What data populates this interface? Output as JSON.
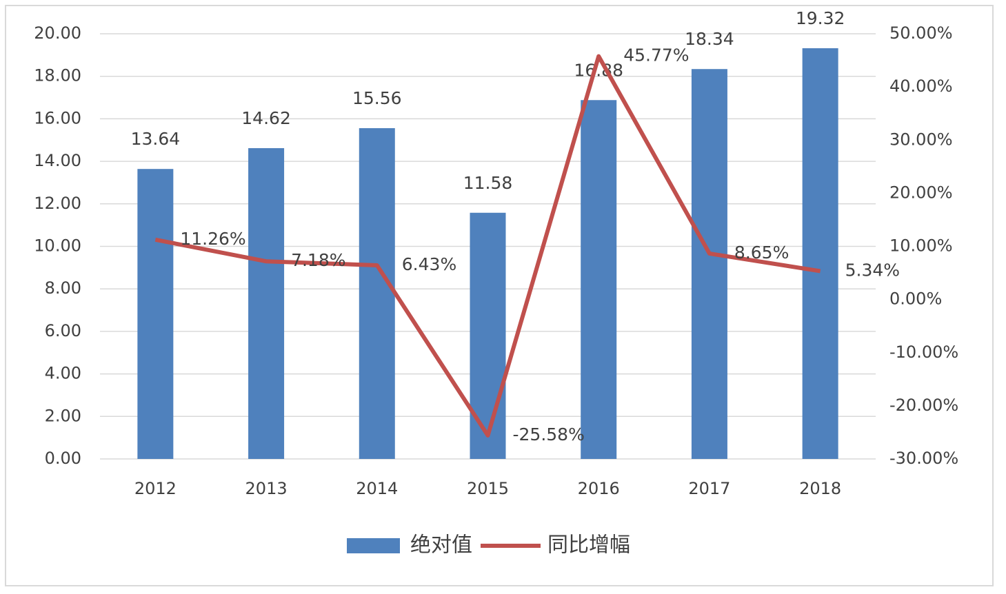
{
  "chart_data": {
    "type": "bar",
    "categories": [
      "2012",
      "2013",
      "2014",
      "2015",
      "2016",
      "2017",
      "2018"
    ],
    "series": [
      {
        "name": "绝对值",
        "type": "bar",
        "color": "#4f81bd",
        "values": [
          13.64,
          14.62,
          15.56,
          11.58,
          16.88,
          18.34,
          19.32
        ]
      },
      {
        "name": "同比增幅",
        "type": "line",
        "axis": "y2",
        "color": "#c0504d",
        "values": [
          11.26,
          7.18,
          6.43,
          -25.58,
          45.77,
          8.65,
          5.34
        ],
        "value_labels": [
          "11.26%",
          "7.18%",
          "6.43%",
          "-25.58%",
          "45.77%",
          "8.65%",
          "5.34%"
        ]
      }
    ],
    "ylim": [
      0,
      20
    ],
    "yticks": [
      {
        "value": 0,
        "label": "0.00"
      },
      {
        "value": 2,
        "label": "2.00"
      },
      {
        "value": 4,
        "label": "4.00"
      },
      {
        "value": 6,
        "label": "6.00"
      },
      {
        "value": 8,
        "label": "8.00"
      },
      {
        "value": 10,
        "label": "10.00"
      },
      {
        "value": 12,
        "label": "12.00"
      },
      {
        "value": 14,
        "label": "14.00"
      },
      {
        "value": 16,
        "label": "16.00"
      },
      {
        "value": 18,
        "label": "18.00"
      },
      {
        "value": 20,
        "label": "20.00"
      }
    ],
    "y2lim": [
      -30,
      50
    ],
    "y2ticks": [
      {
        "value": -30,
        "label": "-30.00%"
      },
      {
        "value": -20,
        "label": "-20.00%"
      },
      {
        "value": -10,
        "label": "-10.00%"
      },
      {
        "value": 0,
        "label": "0.00%"
      },
      {
        "value": 10,
        "label": "10.00%"
      },
      {
        "value": 20,
        "label": "20.00%"
      },
      {
        "value": 30,
        "label": "30.00%"
      },
      {
        "value": 40,
        "label": "40.00%"
      },
      {
        "value": 50,
        "label": "50.00%"
      }
    ],
    "grid": true,
    "legend": "bottom"
  }
}
